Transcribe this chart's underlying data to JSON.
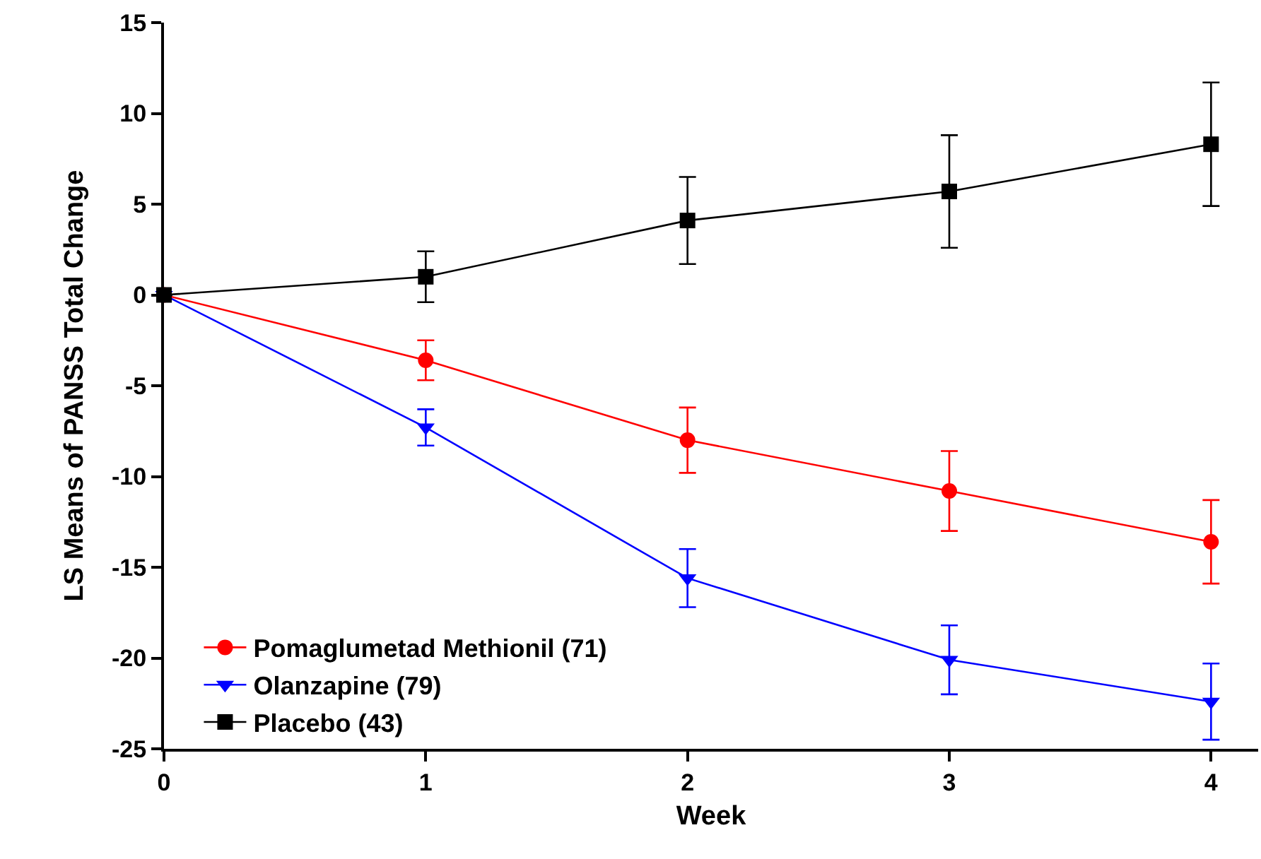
{
  "chart_data": {
    "type": "line",
    "xlabel": "Week",
    "ylabel": "LS Means of PANSS Total Change",
    "x": [
      0,
      1,
      2,
      3,
      4
    ],
    "xlim": [
      0,
      4.18
    ],
    "xticks": [
      0,
      1,
      2,
      3,
      4
    ],
    "ylim": [
      -25,
      15
    ],
    "yticks": [
      -25,
      -20,
      -15,
      -10,
      -5,
      0,
      5,
      10,
      15
    ],
    "legend": "bottom left",
    "line_style": "solid",
    "series": [
      {
        "name": "Pomaglumetad Methionil (71)",
        "color": "#ff0000",
        "marker": "circle",
        "values": [
          0,
          -3.6,
          -8.0,
          -10.8,
          -13.6
        ],
        "errors": [
          null,
          1.1,
          1.8,
          2.2,
          2.3
        ]
      },
      {
        "name": "Olanzapine (79)",
        "color": "#0000ff",
        "marker": "triangle",
        "values": [
          0,
          -7.3,
          -15.6,
          -20.1,
          -22.4
        ],
        "errors": [
          null,
          1.0,
          1.6,
          1.9,
          2.1
        ]
      },
      {
        "name": "Placebo (43)",
        "color": "#000000",
        "marker": "square",
        "values": [
          0,
          1.0,
          4.1,
          5.7,
          8.3
        ],
        "errors": [
          null,
          1.4,
          2.4,
          3.1,
          3.4
        ]
      }
    ]
  }
}
